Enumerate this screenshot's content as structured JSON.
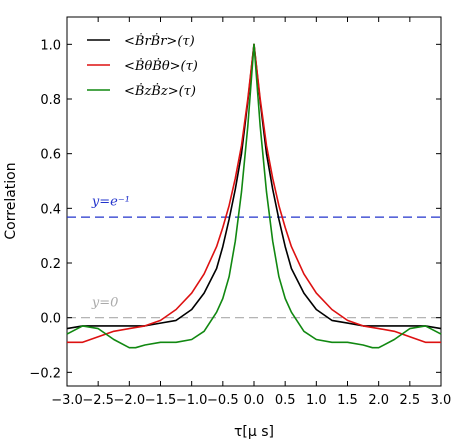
{
  "chart_data": {
    "type": "line",
    "xlabel": "τ[μ s]",
    "ylabel": "Correlation",
    "xlim": [
      -3.0,
      3.0
    ],
    "ylim": [
      -0.25,
      1.1
    ],
    "xticks": [
      -3.0,
      -2.5,
      -2.0,
      -1.5,
      -1.0,
      -0.5,
      0.0,
      0.5,
      1.0,
      1.5,
      2.0,
      2.5,
      3.0
    ],
    "xtick_labels": [
      "−3.0",
      "−2.5",
      "−2.0",
      "−1.5",
      "−1.0",
      "−0.5",
      "0.0",
      "0.5",
      "1.0",
      "1.5",
      "2.0",
      "2.5",
      "3.0"
    ],
    "yticks": [
      -0.2,
      0.0,
      0.2,
      0.4,
      0.6,
      0.8,
      1.0
    ],
    "ytick_labels": [
      "−0.2",
      "0.0",
      "0.2",
      "0.4",
      "0.6",
      "0.8",
      "1.0"
    ],
    "grid": false,
    "legend_position": "top-left",
    "series": [
      {
        "name": "<ḂrḂr>(τ)",
        "color": "#000000",
        "x": [
          -3.0,
          -2.75,
          -2.5,
          -2.25,
          -2.0,
          -1.75,
          -1.5,
          -1.25,
          -1.0,
          -0.8,
          -0.6,
          -0.5,
          -0.4,
          -0.3,
          -0.2,
          -0.1,
          0.0,
          0.1,
          0.2,
          0.3,
          0.4,
          0.5,
          0.6,
          0.8,
          1.0,
          1.25,
          1.5,
          1.75,
          2.0,
          2.25,
          2.5,
          2.75,
          3.0
        ],
        "y": [
          -0.04,
          -0.03,
          -0.03,
          -0.03,
          -0.03,
          -0.03,
          -0.02,
          -0.01,
          0.03,
          0.09,
          0.18,
          0.26,
          0.36,
          0.47,
          0.6,
          0.79,
          1.0,
          0.79,
          0.6,
          0.47,
          0.36,
          0.26,
          0.18,
          0.09,
          0.03,
          -0.01,
          -0.02,
          -0.03,
          -0.03,
          -0.03,
          -0.03,
          -0.03,
          -0.04
        ]
      },
      {
        "name": "<ḂθḂθ>(τ)",
        "color": "#dd1111",
        "x": [
          -3.0,
          -2.75,
          -2.5,
          -2.25,
          -2.0,
          -1.75,
          -1.5,
          -1.25,
          -1.0,
          -0.8,
          -0.6,
          -0.5,
          -0.4,
          -0.3,
          -0.2,
          -0.1,
          0.0,
          0.1,
          0.2,
          0.3,
          0.4,
          0.5,
          0.6,
          0.8,
          1.0,
          1.25,
          1.5,
          1.75,
          2.0,
          2.25,
          2.5,
          2.75,
          3.0
        ],
        "y": [
          -0.09,
          -0.09,
          -0.07,
          -0.05,
          -0.04,
          -0.03,
          -0.01,
          0.03,
          0.09,
          0.16,
          0.26,
          0.33,
          0.41,
          0.51,
          0.63,
          0.8,
          1.0,
          0.8,
          0.63,
          0.51,
          0.41,
          0.33,
          0.26,
          0.16,
          0.09,
          0.03,
          -0.01,
          -0.03,
          -0.04,
          -0.05,
          -0.07,
          -0.09,
          -0.09
        ]
      },
      {
        "name": "<ḂzḂz>(τ)",
        "color": "#118811",
        "x": [
          -3.0,
          -2.75,
          -2.5,
          -2.25,
          -2.0,
          -1.9,
          -1.75,
          -1.5,
          -1.25,
          -1.0,
          -0.8,
          -0.6,
          -0.5,
          -0.4,
          -0.3,
          -0.2,
          -0.1,
          0.0,
          0.1,
          0.2,
          0.3,
          0.4,
          0.5,
          0.6,
          0.8,
          1.0,
          1.25,
          1.5,
          1.75,
          1.9,
          2.0,
          2.25,
          2.5,
          2.75,
          3.0
        ],
        "y": [
          -0.06,
          -0.03,
          -0.04,
          -0.08,
          -0.11,
          -0.11,
          -0.1,
          -0.09,
          -0.09,
          -0.08,
          -0.05,
          0.02,
          0.07,
          0.15,
          0.28,
          0.46,
          0.7,
          1.0,
          0.7,
          0.46,
          0.28,
          0.15,
          0.07,
          0.02,
          -0.05,
          -0.08,
          -0.09,
          -0.09,
          -0.1,
          -0.11,
          -0.11,
          -0.08,
          -0.04,
          -0.03,
          -0.06
        ]
      }
    ],
    "reference_lines": [
      {
        "y": 0.3679,
        "label": "y=e⁻¹",
        "color": "#2233cc",
        "label_x": -2.6,
        "label_y": 0.41
      },
      {
        "y": 0.0,
        "label": "y=0",
        "color": "#aaaaaa",
        "label_x": -2.6,
        "label_y": 0.04
      }
    ]
  }
}
